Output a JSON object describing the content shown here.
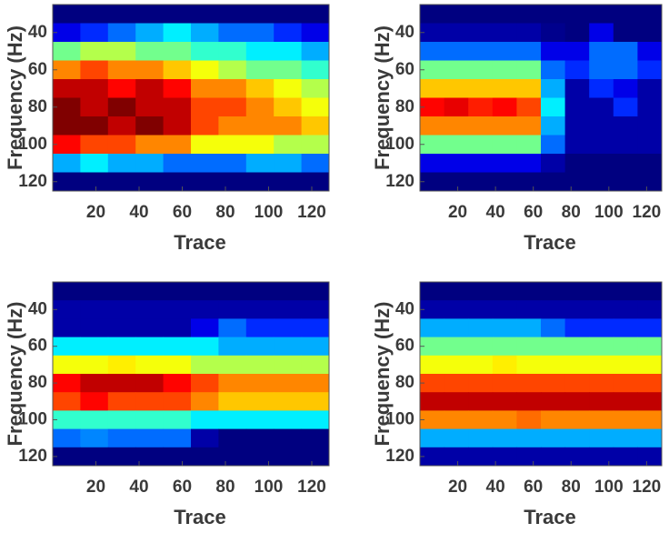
{
  "chart_data": [
    {
      "type": "heatmap",
      "xlabel": "Trace",
      "ylabel": "Frequency (Hz)",
      "colormap": "jet",
      "xlim": [
        0,
        128
      ],
      "ylim": [
        125,
        25
      ],
      "xticks": [
        20,
        40,
        60,
        80,
        100,
        120
      ],
      "yticks": [
        40,
        60,
        80,
        100,
        120
      ],
      "x": [
        6.4,
        19.2,
        32,
        44.8,
        57.6,
        70.4,
        83.2,
        96,
        108.8,
        121.6
      ],
      "y": [
        30,
        40,
        50,
        60,
        70,
        80,
        90,
        100,
        110,
        120
      ],
      "z": [
        [
          0.12,
          0.12,
          0.12,
          0.12,
          0.12,
          0.12,
          0.12,
          0.12,
          0.12,
          0.12
        ],
        [
          0.2,
          0.25,
          0.3,
          0.35,
          0.4,
          0.35,
          0.3,
          0.3,
          0.25,
          0.2
        ],
        [
          0.5,
          0.55,
          0.55,
          0.5,
          0.5,
          0.45,
          0.45,
          0.4,
          0.4,
          0.35
        ],
        [
          0.7,
          0.75,
          0.7,
          0.7,
          0.65,
          0.6,
          0.55,
          0.5,
          0.5,
          0.45
        ],
        [
          0.85,
          0.85,
          0.8,
          0.85,
          0.8,
          0.7,
          0.7,
          0.65,
          0.6,
          0.55
        ],
        [
          0.9,
          0.85,
          0.9,
          0.85,
          0.85,
          0.75,
          0.75,
          0.7,
          0.65,
          0.6
        ],
        [
          0.9,
          0.9,
          0.85,
          0.9,
          0.85,
          0.75,
          0.7,
          0.7,
          0.7,
          0.65
        ],
        [
          0.8,
          0.75,
          0.75,
          0.7,
          0.7,
          0.6,
          0.6,
          0.6,
          0.55,
          0.55
        ],
        [
          0.35,
          0.4,
          0.35,
          0.35,
          0.3,
          0.3,
          0.3,
          0.35,
          0.35,
          0.3
        ],
        [
          0.12,
          0.12,
          0.12,
          0.12,
          0.12,
          0.12,
          0.12,
          0.12,
          0.12,
          0.12
        ]
      ]
    },
    {
      "type": "heatmap",
      "xlabel": "Trace",
      "ylabel": "Frequency (Hz)",
      "colormap": "jet",
      "xlim": [
        0,
        128
      ],
      "ylim": [
        125,
        25
      ],
      "xticks": [
        20,
        40,
        60,
        80,
        100,
        120
      ],
      "yticks": [
        40,
        60,
        80,
        100,
        120
      ],
      "x": [
        6.4,
        19.2,
        32,
        44.8,
        57.6,
        70.4,
        83.2,
        96,
        108.8,
        121.6
      ],
      "y": [
        30,
        40,
        50,
        60,
        70,
        80,
        90,
        100,
        110,
        120
      ],
      "z": [
        [
          0.12,
          0.12,
          0.12,
          0.12,
          0.12,
          0.12,
          0.12,
          0.12,
          0.12,
          0.12
        ],
        [
          0.15,
          0.15,
          0.15,
          0.15,
          0.15,
          0.13,
          0.12,
          0.2,
          0.12,
          0.12
        ],
        [
          0.3,
          0.3,
          0.3,
          0.3,
          0.3,
          0.2,
          0.2,
          0.3,
          0.3,
          0.2
        ],
        [
          0.5,
          0.5,
          0.5,
          0.5,
          0.5,
          0.3,
          0.25,
          0.3,
          0.3,
          0.25
        ],
        [
          0.65,
          0.65,
          0.65,
          0.65,
          0.65,
          0.35,
          0.15,
          0.25,
          0.2,
          0.15
        ],
        [
          0.8,
          0.82,
          0.78,
          0.8,
          0.75,
          0.4,
          0.15,
          0.15,
          0.25,
          0.15
        ],
        [
          0.7,
          0.7,
          0.7,
          0.7,
          0.7,
          0.35,
          0.15,
          0.15,
          0.15,
          0.15
        ],
        [
          0.5,
          0.5,
          0.5,
          0.5,
          0.5,
          0.3,
          0.15,
          0.15,
          0.15,
          0.15
        ],
        [
          0.2,
          0.2,
          0.2,
          0.2,
          0.2,
          0.15,
          0.12,
          0.12,
          0.12,
          0.12
        ],
        [
          0.12,
          0.12,
          0.12,
          0.12,
          0.12,
          0.12,
          0.12,
          0.12,
          0.12,
          0.12
        ]
      ]
    },
    {
      "type": "heatmap",
      "xlabel": "Trace",
      "ylabel": "Frequency (Hz)",
      "colormap": "jet",
      "xlim": [
        0,
        128
      ],
      "ylim": [
        125,
        25
      ],
      "xticks": [
        20,
        40,
        60,
        80,
        100,
        120
      ],
      "yticks": [
        40,
        60,
        80,
        100,
        120
      ],
      "x": [
        6.4,
        19.2,
        32,
        44.8,
        57.6,
        70.4,
        83.2,
        96,
        108.8,
        121.6
      ],
      "y": [
        30,
        40,
        50,
        60,
        70,
        80,
        90,
        100,
        110,
        120
      ],
      "z": [
        [
          0.12,
          0.12,
          0.12,
          0.12,
          0.12,
          0.12,
          0.12,
          0.12,
          0.12,
          0.12
        ],
        [
          0.15,
          0.15,
          0.15,
          0.15,
          0.15,
          0.15,
          0.15,
          0.15,
          0.15,
          0.15
        ],
        [
          0.15,
          0.15,
          0.15,
          0.15,
          0.15,
          0.2,
          0.3,
          0.25,
          0.25,
          0.25
        ],
        [
          0.4,
          0.4,
          0.4,
          0.4,
          0.4,
          0.4,
          0.35,
          0.35,
          0.35,
          0.35
        ],
        [
          0.6,
          0.6,
          0.62,
          0.6,
          0.6,
          0.55,
          0.55,
          0.55,
          0.55,
          0.55
        ],
        [
          0.8,
          0.85,
          0.85,
          0.85,
          0.8,
          0.75,
          0.7,
          0.7,
          0.7,
          0.7
        ],
        [
          0.75,
          0.8,
          0.75,
          0.75,
          0.75,
          0.7,
          0.65,
          0.65,
          0.65,
          0.65
        ],
        [
          0.45,
          0.45,
          0.45,
          0.45,
          0.45,
          0.4,
          0.4,
          0.4,
          0.4,
          0.4
        ],
        [
          0.3,
          0.32,
          0.3,
          0.3,
          0.3,
          0.15,
          0.12,
          0.12,
          0.12,
          0.12
        ],
        [
          0.12,
          0.12,
          0.12,
          0.12,
          0.12,
          0.12,
          0.12,
          0.12,
          0.12,
          0.12
        ]
      ]
    },
    {
      "type": "heatmap",
      "xlabel": "Trace",
      "ylabel": "Frequency (Hz)",
      "colormap": "jet",
      "xlim": [
        0,
        128
      ],
      "ylim": [
        125,
        25
      ],
      "xticks": [
        20,
        40,
        60,
        80,
        100,
        120
      ],
      "yticks": [
        40,
        60,
        80,
        100,
        120
      ],
      "x": [
        6.4,
        19.2,
        32,
        44.8,
        57.6,
        70.4,
        83.2,
        96,
        108.8,
        121.6
      ],
      "y": [
        30,
        40,
        50,
        60,
        70,
        80,
        90,
        100,
        110,
        120
      ],
      "z": [
        [
          0.12,
          0.12,
          0.12,
          0.12,
          0.12,
          0.12,
          0.12,
          0.12,
          0.12,
          0.12
        ],
        [
          0.15,
          0.15,
          0.15,
          0.15,
          0.15,
          0.15,
          0.15,
          0.15,
          0.15,
          0.15
        ],
        [
          0.35,
          0.35,
          0.35,
          0.35,
          0.35,
          0.3,
          0.25,
          0.25,
          0.25,
          0.25
        ],
        [
          0.5,
          0.5,
          0.5,
          0.5,
          0.5,
          0.5,
          0.5,
          0.5,
          0.5,
          0.5
        ],
        [
          0.6,
          0.6,
          0.6,
          0.62,
          0.6,
          0.6,
          0.6,
          0.6,
          0.6,
          0.6
        ],
        [
          0.75,
          0.75,
          0.75,
          0.75,
          0.75,
          0.75,
          0.75,
          0.75,
          0.75,
          0.75
        ],
        [
          0.85,
          0.85,
          0.85,
          0.85,
          0.85,
          0.85,
          0.85,
          0.85,
          0.85,
          0.85
        ],
        [
          0.7,
          0.7,
          0.7,
          0.7,
          0.72,
          0.7,
          0.7,
          0.7,
          0.7,
          0.7
        ],
        [
          0.35,
          0.35,
          0.35,
          0.35,
          0.35,
          0.35,
          0.35,
          0.35,
          0.35,
          0.35
        ],
        [
          0.15,
          0.15,
          0.15,
          0.15,
          0.15,
          0.15,
          0.15,
          0.15,
          0.15,
          0.15
        ]
      ]
    }
  ]
}
